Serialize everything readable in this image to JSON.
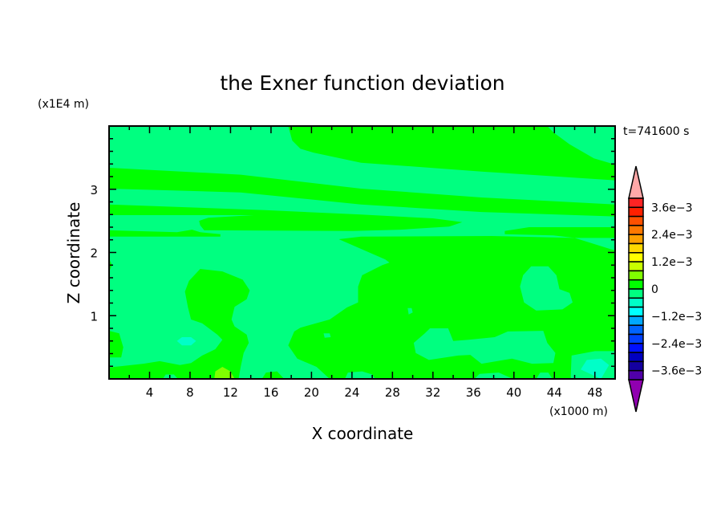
{
  "chart_data": {
    "type": "contour",
    "title": "the Exner function deviation",
    "xlabel": "X coordinate",
    "ylabel": "Z coordinate",
    "x_unit": "(x1000 m)",
    "y_unit": "(x1E4 m)",
    "time_label": "t=741600 s",
    "xlim": [
      0,
      50
    ],
    "ylim": [
      0,
      4
    ],
    "x_ticks": [
      4,
      8,
      12,
      16,
      20,
      24,
      28,
      32,
      36,
      40,
      44,
      48
    ],
    "x_tick_labels": [
      "4",
      "8",
      "12",
      "16",
      "20",
      "24",
      "28",
      "32",
      "36",
      "40",
      "44",
      "48"
    ],
    "x_minor_step": 2,
    "y_ticks": [
      1,
      2,
      3
    ],
    "y_tick_labels": [
      "1",
      "2",
      "3"
    ],
    "y_minor_step": 0.2,
    "colorbar": {
      "levels_min": -0.004,
      "levels_max": 0.004,
      "level_step": 0.0004,
      "labels": [
        "3.6e-3",
        "2.4e-3",
        "1.2e-3",
        "0",
        "-1.2e-3",
        "-2.4e-3",
        "-3.6e-3"
      ],
      "label_values": [
        0.0036,
        0.0024,
        0.0012,
        0,
        -0.0012,
        -0.0024,
        -0.0036
      ],
      "colors_top_to_bottom": [
        "#ff2424",
        "#ff2000",
        "#ff5000",
        "#ff7800",
        "#ffa000",
        "#ffd800",
        "#ffff00",
        "#c8ff00",
        "#80ff00",
        "#00ff00",
        "#00ff80",
        "#00ffc8",
        "#00ffff",
        "#00a8ff",
        "#0064ff",
        "#0040ff",
        "#0010ff",
        "#0000c0",
        "#1400a0",
        "#5000a8"
      ],
      "over_color": "#ffa8a8",
      "under_color": "#9000b0"
    },
    "background_level_color": "#00ff80",
    "regions": [
      {
        "color": "#00ff00",
        "points": [
          [
            17.7,
            4.0
          ],
          [
            18.1,
            3.77
          ],
          [
            18.9,
            3.64
          ],
          [
            20.2,
            3.58
          ],
          [
            24.9,
            3.42
          ],
          [
            36.8,
            3.28
          ],
          [
            50,
            3.14
          ],
          [
            50,
            3.39
          ],
          [
            47.9,
            3.49
          ],
          [
            45.5,
            3.71
          ],
          [
            43.9,
            3.9
          ],
          [
            43.3,
            4.0
          ]
        ]
      },
      {
        "color": "#00ff00",
        "points": [
          [
            0,
            3.34
          ],
          [
            13,
            3.23
          ],
          [
            24.9,
            3.01
          ],
          [
            36.8,
            2.87
          ],
          [
            50,
            2.76
          ],
          [
            50,
            2.57
          ],
          [
            36.8,
            2.64
          ],
          [
            24.9,
            2.76
          ],
          [
            13,
            2.95
          ],
          [
            0,
            3.01
          ]
        ]
      },
      {
        "color": "#00ff00",
        "points": [
          [
            0,
            2.76
          ],
          [
            15.4,
            2.67
          ],
          [
            24.9,
            2.6
          ],
          [
            32,
            2.54
          ],
          [
            34.9,
            2.48
          ],
          [
            33.6,
            2.41
          ],
          [
            28.8,
            2.36
          ],
          [
            24.1,
            2.34
          ],
          [
            9.4,
            2.35
          ],
          [
            9.0,
            2.43
          ],
          [
            8.9,
            2.5
          ],
          [
            9.8,
            2.55
          ],
          [
            14.3,
            2.59
          ],
          [
            0,
            2.59
          ]
        ]
      },
      {
        "color": "#00ff00",
        "points": [
          [
            0,
            2.35
          ],
          [
            6.7,
            2.32
          ],
          [
            8.2,
            2.36
          ],
          [
            9.0,
            2.32
          ],
          [
            11.0,
            2.29
          ],
          [
            11.0,
            2.25
          ],
          [
            0,
            2.25
          ]
        ]
      },
      {
        "color": "#00ff00",
        "points": [
          [
            39.1,
            2.34
          ],
          [
            41.5,
            2.4
          ],
          [
            50,
            2.4
          ],
          [
            50,
            2.23
          ],
          [
            46,
            2.23
          ],
          [
            43.9,
            2.27
          ],
          [
            39.1,
            2.29
          ]
        ]
      },
      {
        "color": "#00ff00",
        "points": [
          [
            22.7,
            2.21
          ],
          [
            24.9,
            2.25
          ],
          [
            37.8,
            2.26
          ],
          [
            46,
            2.23
          ],
          [
            50,
            2.03
          ],
          [
            50,
            0.44
          ],
          [
            48,
            0.44
          ],
          [
            45.7,
            0.37
          ],
          [
            45.6,
            0
          ],
          [
            21.8,
            0
          ],
          [
            20.5,
            0.19
          ],
          [
            18.6,
            0.32
          ],
          [
            17.7,
            0.53
          ],
          [
            18.3,
            0.75
          ],
          [
            18.9,
            0.81
          ],
          [
            21.8,
            0.94
          ],
          [
            23.5,
            1.13
          ],
          [
            24.6,
            1.21
          ],
          [
            24.6,
            1.46
          ],
          [
            25.0,
            1.64
          ],
          [
            27.0,
            1.8
          ],
          [
            27.7,
            1.84
          ],
          [
            27.3,
            1.89
          ]
        ]
      },
      {
        "color": "#00ff80",
        "points": [
          [
            41.7,
            1.78
          ],
          [
            43.4,
            1.78
          ],
          [
            44.2,
            1.64
          ],
          [
            44.5,
            1.42
          ],
          [
            45.5,
            1.36
          ],
          [
            45.8,
            1.21
          ],
          [
            44.8,
            1.1
          ],
          [
            42.2,
            1.08
          ],
          [
            41.0,
            1.21
          ],
          [
            40.6,
            1.46
          ],
          [
            40.9,
            1.64
          ]
        ]
      },
      {
        "color": "#00ff80",
        "points": [
          [
            30.1,
            0.57
          ],
          [
            31.2,
            0.72
          ],
          [
            31.7,
            0.8
          ],
          [
            33.5,
            0.8
          ],
          [
            34.0,
            0.6
          ],
          [
            35.5,
            0.62
          ],
          [
            38.1,
            0.66
          ],
          [
            39.4,
            0.75
          ],
          [
            42.9,
            0.76
          ],
          [
            43.3,
            0.57
          ],
          [
            44.1,
            0.41
          ],
          [
            43.9,
            0.25
          ],
          [
            41.8,
            0.24
          ],
          [
            39.8,
            0.32
          ],
          [
            36.8,
            0.24
          ],
          [
            35.7,
            0.38
          ],
          [
            34.5,
            0.37
          ],
          [
            31.6,
            0.3
          ],
          [
            30.3,
            0.41
          ]
        ]
      },
      {
        "color": "#00ff80",
        "points": [
          [
            23.3,
            0
          ],
          [
            23.6,
            0.1
          ],
          [
            25,
            0.12
          ],
          [
            26,
            0.07
          ],
          [
            26.3,
            0
          ]
        ]
      },
      {
        "color": "#00ff80",
        "points": [
          [
            36.1,
            0
          ],
          [
            36.6,
            0.08
          ],
          [
            38.5,
            0.1
          ],
          [
            39.9,
            0
          ]
        ]
      },
      {
        "color": "#00ff80",
        "points": [
          [
            42.2,
            0
          ],
          [
            42.6,
            0.1
          ],
          [
            43.4,
            0.1
          ],
          [
            43.8,
            0
          ]
        ]
      },
      {
        "color": "#00ff80",
        "points": [
          [
            29.5,
            1.12
          ],
          [
            29.9,
            1.12
          ],
          [
            30.0,
            1.05
          ],
          [
            29.6,
            1.02
          ]
        ]
      },
      {
        "color": "#00ff80",
        "points": [
          [
            21.2,
            0.72
          ],
          [
            21.8,
            0.72
          ],
          [
            21.9,
            0.66
          ],
          [
            21.3,
            0.65
          ]
        ]
      },
      {
        "color": "#00ffc8",
        "points": [
          [
            46.6,
            0.15
          ],
          [
            47.2,
            0.3
          ],
          [
            48.6,
            0.32
          ],
          [
            49.4,
            0.22
          ],
          [
            48.6,
            0
          ]
        ]
      },
      {
        "color": "#00ff00",
        "points": [
          [
            9.0,
            1.74
          ],
          [
            11.2,
            1.7
          ],
          [
            13.2,
            1.57
          ],
          [
            13.9,
            1.4
          ],
          [
            13.6,
            1.26
          ],
          [
            12.4,
            1.14
          ],
          [
            12.1,
            0.94
          ],
          [
            12.4,
            0.83
          ],
          [
            13.6,
            0.7
          ],
          [
            13.8,
            0.57
          ],
          [
            13.3,
            0.41
          ],
          [
            13.0,
            0.19
          ],
          [
            12.8,
            0
          ],
          [
            0,
            0
          ],
          [
            0,
            0.18
          ],
          [
            3.4,
            0.24
          ],
          [
            5.0,
            0.28
          ],
          [
            7.0,
            0.22
          ],
          [
            8.1,
            0.25
          ],
          [
            9.2,
            0.37
          ],
          [
            10.5,
            0.47
          ],
          [
            11.2,
            0.62
          ],
          [
            10.7,
            0.7
          ],
          [
            9.2,
            0.88
          ],
          [
            8.1,
            0.94
          ],
          [
            7.8,
            1.13
          ],
          [
            7.5,
            1.38
          ],
          [
            7.9,
            1.55
          ]
        ]
      },
      {
        "color": "#00ff80",
        "points": [
          [
            5.3,
            0
          ],
          [
            5.6,
            0.07
          ],
          [
            6.4,
            0.07
          ],
          [
            6.8,
            0
          ]
        ]
      },
      {
        "color": "#00ff00",
        "points": [
          [
            15.1,
            0
          ],
          [
            15.5,
            0.1
          ],
          [
            16.6,
            0.12
          ],
          [
            17.3,
            0
          ]
        ]
      },
      {
        "color": "#80ff00",
        "points": [
          [
            10.4,
            0
          ],
          [
            10.5,
            0.12
          ],
          [
            11.2,
            0.19
          ],
          [
            12.0,
            0.12
          ],
          [
            12.4,
            0
          ]
        ]
      },
      {
        "color": "#00ffc8",
        "points": [
          [
            6.7,
            0.6
          ],
          [
            7.2,
            0.66
          ],
          [
            8.1,
            0.66
          ],
          [
            8.6,
            0.6
          ],
          [
            8.1,
            0.53
          ],
          [
            7.2,
            0.53
          ]
        ]
      },
      {
        "color": "#00ff00",
        "points": [
          [
            0,
            0.76
          ],
          [
            1.0,
            0.72
          ],
          [
            1.4,
            0.5
          ],
          [
            1.2,
            0.34
          ],
          [
            0,
            0.34
          ]
        ]
      },
      {
        "color": "#00ff00",
        "points": [
          [
            0,
            1.9
          ],
          [
            0.3,
            1.8
          ],
          [
            0,
            1.7
          ]
        ]
      }
    ]
  }
}
